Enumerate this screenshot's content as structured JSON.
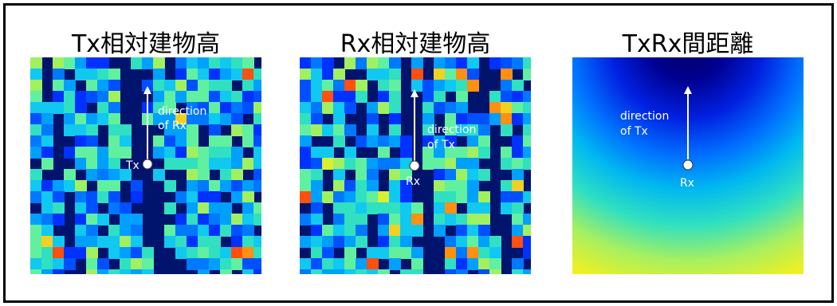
{
  "panels": [
    {
      "title": "Tx相対建物高",
      "direction_text": [
        "direction",
        "of Rx"
      ],
      "point_label": "Tx"
    },
    {
      "title": "Rx相対建物高",
      "direction_text": [
        "direction",
        "of Tx"
      ],
      "point_label": "Rx"
    },
    {
      "title": "TxRx間距離",
      "direction_text": [
        "direction",
        "of Tx"
      ],
      "point_label": "Rx"
    }
  ],
  "colors": {
    "background_deep": "#00146e",
    "colormap": "jet"
  }
}
